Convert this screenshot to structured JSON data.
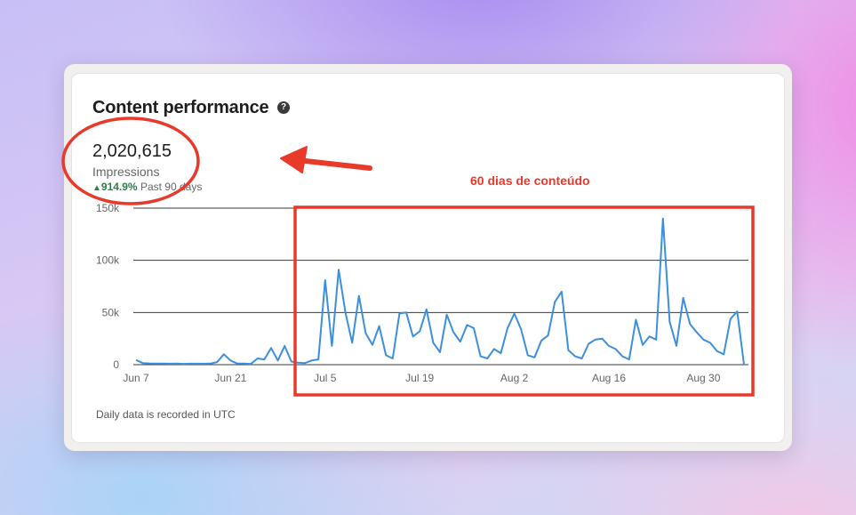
{
  "card": {
    "title": "Content performance",
    "help_icon": "question-circle-icon",
    "metric_value": "2,020,615",
    "metric_label": "Impressions",
    "delta_arrow_icon": "triangle-up-icon",
    "delta_value": "914.9%",
    "delta_period": "Past 90 days",
    "footnote": "Daily data is recorded in UTC"
  },
  "annotation": {
    "text": "60 dias de conteúdo",
    "color": "#e8392b"
  },
  "colors": {
    "line": "#3b8fdc",
    "positive": "#2e7d4a"
  },
  "chart_data": {
    "type": "line",
    "title": "",
    "xlabel": "",
    "ylabel": "",
    "ylim": [
      0,
      150000
    ],
    "yticks": [
      0,
      50000,
      100000,
      150000
    ],
    "ytick_labels": [
      "0",
      "50k",
      "100k",
      "150k"
    ],
    "x_start_date": "2024-06-07",
    "xticks": [
      "Jun 7",
      "Jun 21",
      "Jul 5",
      "Jul 19",
      "Aug 2",
      "Aug 16",
      "Aug 30"
    ],
    "grid": "horizontal",
    "series": [
      {
        "name": "Impressions",
        "values": [
          4500,
          1500,
          1200,
          1000,
          1000,
          900,
          1000,
          800,
          900,
          900,
          900,
          1000,
          2500,
          10000,
          4000,
          1000,
          1000,
          800,
          6000,
          5000,
          16000,
          4000,
          18000,
          3000,
          2000,
          1500,
          4000,
          5000,
          81000,
          18000,
          91000,
          50000,
          21000,
          66000,
          30000,
          19000,
          37000,
          9000,
          6000,
          49000,
          50000,
          27000,
          32000,
          53000,
          21000,
          12000,
          48000,
          31000,
          22000,
          38000,
          35000,
          8000,
          6000,
          15000,
          11000,
          35000,
          49000,
          34000,
          9000,
          7000,
          23000,
          28000,
          60000,
          70000,
          14000,
          8000,
          6000,
          20000,
          24000,
          25000,
          18000,
          15000,
          8000,
          5000,
          43000,
          19000,
          27000,
          24000,
          140000,
          41000,
          18000,
          64000,
          39000,
          31000,
          24000,
          21000,
          13000,
          10000,
          44000,
          51000,
          0
        ]
      }
    ]
  }
}
